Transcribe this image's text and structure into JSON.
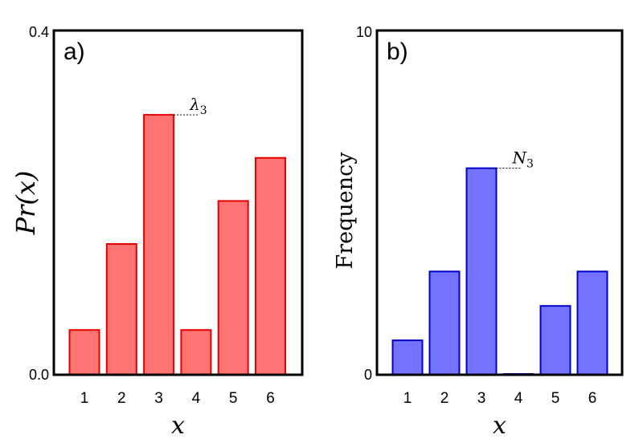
{
  "chart_data": [
    {
      "type": "bar",
      "panel_label": "a)",
      "categories": [
        "1",
        "2",
        "3",
        "4",
        "5",
        "6"
      ],
      "values": [
        0.052,
        0.152,
        0.302,
        0.052,
        0.202,
        0.252
      ],
      "ylim": [
        0,
        0.4
      ],
      "ytick_labels": [
        "0.0",
        "0.4"
      ],
      "xlabel": "x",
      "ylabel": "Pr(x)",
      "annotation": {
        "text": "λ3",
        "category": "3"
      },
      "fill_color": "#ff7373",
      "edge_color": "#e60000"
    },
    {
      "type": "bar",
      "panel_label": "b)",
      "categories": [
        "1",
        "2",
        "3",
        "4",
        "5",
        "6"
      ],
      "values": [
        1,
        3,
        6,
        0,
        2,
        3
      ],
      "ylim": [
        0,
        10
      ],
      "ytick_labels": [
        "0",
        "10"
      ],
      "xlabel": "x",
      "ylabel": "Frequency",
      "annotation": {
        "text": "N3",
        "category": "3"
      },
      "fill_color": "#7373ff",
      "edge_color": "#0000cc"
    }
  ]
}
